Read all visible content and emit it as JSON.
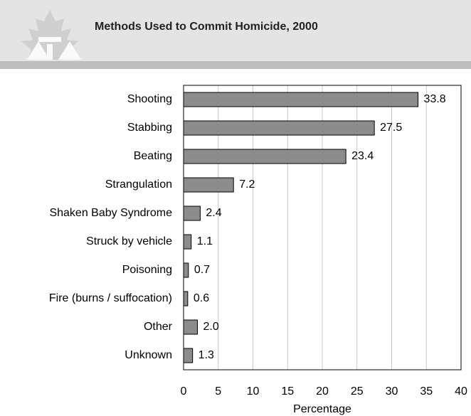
{
  "chart_data": {
    "type": "barh",
    "title": "Methods Used to Commit Homicide, 2000",
    "categories": [
      "Shooting",
      "Stabbing",
      "Beating",
      "Strangulation",
      "Shaken Baby Syndrome",
      "Struck by vehicle",
      "Poisoning",
      "Fire (burns / suffocation)",
      "Other",
      "Unknown"
    ],
    "values": [
      33.8,
      27.5,
      23.4,
      7.2,
      2.4,
      1.1,
      0.7,
      0.6,
      2.0,
      1.3
    ],
    "value_labels": [
      "33.8",
      "27.5",
      "23.4",
      "7.2",
      "2.4",
      "1.1",
      "0.7",
      "0.6",
      "2.0",
      "1.3"
    ],
    "color": "#8c8c8c",
    "xlabel": "Percentage",
    "xlim": [
      0,
      40
    ],
    "xticks": [
      0,
      5,
      10,
      15,
      20,
      25,
      30,
      35,
      40
    ],
    "grid": true
  }
}
